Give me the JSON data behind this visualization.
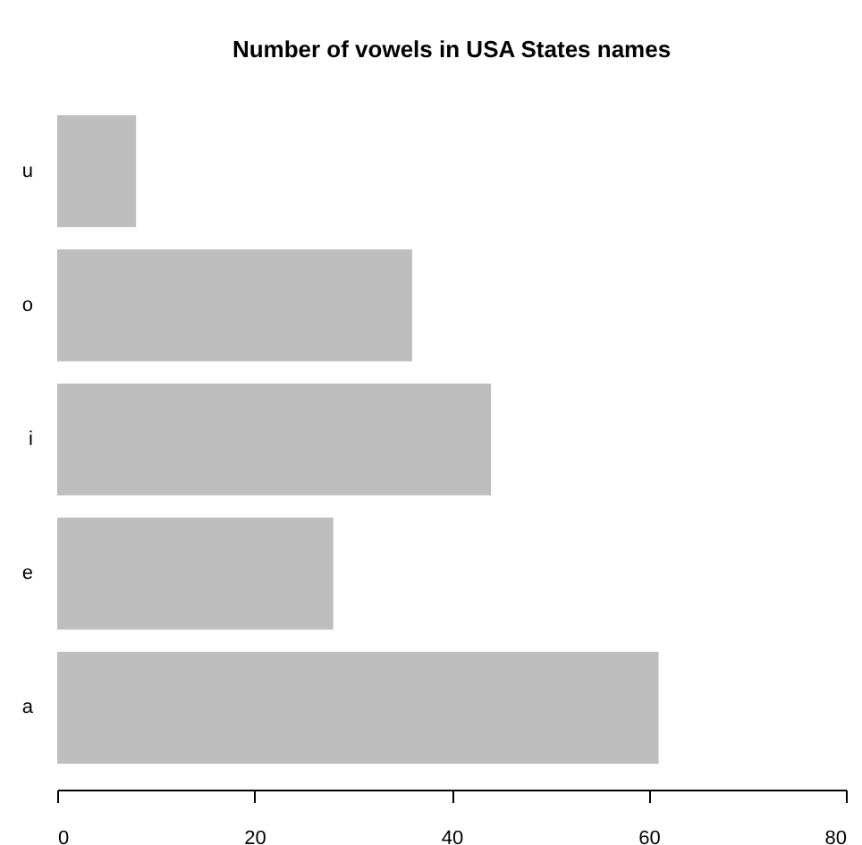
{
  "chart_data": {
    "type": "bar",
    "orientation": "horizontal",
    "title": "Number of vowels in USA States names",
    "categories": [
      "u",
      "o",
      "i",
      "e",
      "a"
    ],
    "values": [
      8,
      36,
      44,
      28,
      61
    ],
    "color": "#bebebe",
    "xlim": [
      0,
      80
    ],
    "xticks": [
      0,
      20,
      40,
      60,
      80
    ],
    "grid": false
  }
}
